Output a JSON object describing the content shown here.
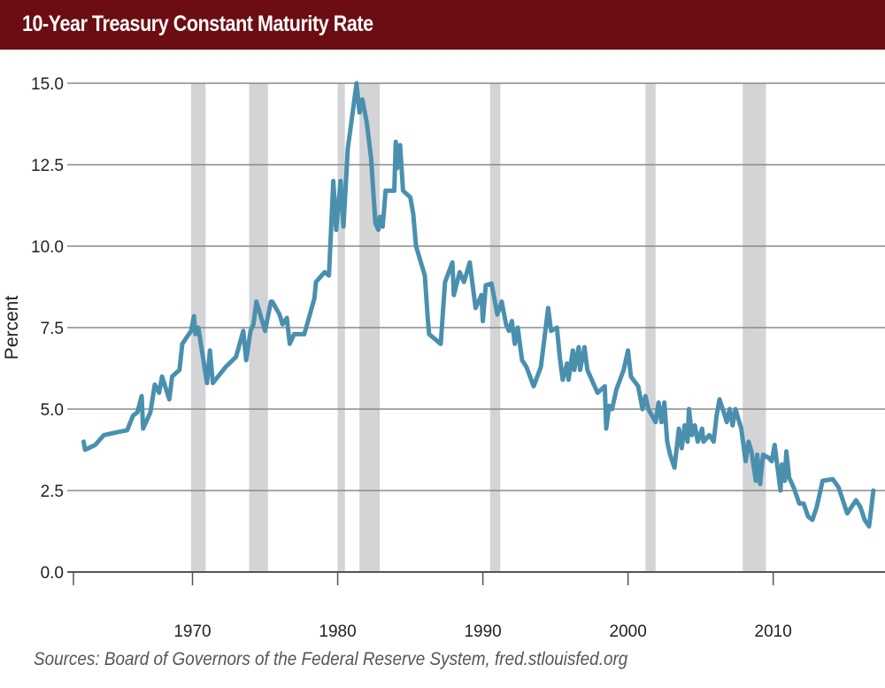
{
  "title": "10-Year Treasury Constant Maturity Rate",
  "source": "Sources: Board of Governors of the Federal Reserve System, fred.stlouisfed.org",
  "chart_data": {
    "type": "line",
    "title": "10-Year Treasury Constant Maturity Rate",
    "xlabel": "",
    "ylabel": "Percent",
    "xlim": [
      1961.8,
      2017.7
    ],
    "ylim": [
      0,
      15
    ],
    "x_ticks": [
      1970,
      1980,
      1990,
      2000,
      2010
    ],
    "x_tick_labels": [
      "1970",
      "1980",
      "1990",
      "2000",
      "2010"
    ],
    "y_ticks": [
      0,
      2.5,
      5,
      7.5,
      10,
      12.5,
      15
    ],
    "y_tick_labels": [
      "0.0",
      "2.5",
      "5.0",
      "7.5",
      "10.0",
      "12.5",
      "15.0"
    ],
    "grid": "horizontal",
    "line_color": "#4a90ae",
    "recession_color": "#d4d4d6",
    "recessions": [
      [
        1969.9,
        1970.9
      ],
      [
        1973.9,
        1975.2
      ],
      [
        1980.0,
        1980.5
      ],
      [
        1981.5,
        1982.9
      ],
      [
        1990.5,
        1991.2
      ],
      [
        2001.2,
        2001.9
      ],
      [
        2007.9,
        2009.5
      ]
    ],
    "series": [
      {
        "x": [
          1962.5,
          1962.6,
          1963.3,
          1963.9,
          1964.9,
          1965.5,
          1965.9,
          1966.2,
          1966.5,
          1966.6,
          1967.1,
          1967.4,
          1967.7,
          1967.9,
          1968.4,
          1968.6,
          1969.1,
          1969.3,
          1969.9,
          1970.1,
          1970.2,
          1970.4,
          1971.0,
          1971.2,
          1971.4,
          1972.3,
          1973.0,
          1973.5,
          1973.7,
          1974.0,
          1974.2,
          1974.4,
          1975.0,
          1975.4,
          1975.5,
          1976.0,
          1976.2,
          1976.5,
          1976.7,
          1977.0,
          1977.7,
          1978.4,
          1978.5,
          1979.1,
          1979.4,
          1979.7,
          1979.9,
          1980.2,
          1980.4,
          1980.7,
          1981.0,
          1981.3,
          1981.5,
          1981.7,
          1982.0,
          1982.3,
          1982.6,
          1982.8,
          1982.9,
          1983.1,
          1983.3,
          1983.9,
          1984.0,
          1984.1,
          1984.3,
          1984.5,
          1985.0,
          1985.2,
          1985.4,
          1986.0,
          1986.2,
          1986.3,
          1987.1,
          1987.3,
          1987.4,
          1987.9,
          1988.0,
          1988.4,
          1988.7,
          1989.1,
          1989.5,
          1989.9,
          1990.0,
          1990.2,
          1990.6,
          1991.0,
          1991.3,
          1991.6,
          1991.8,
          1992.0,
          1992.2,
          1992.4,
          1992.7,
          1993.0,
          1993.5,
          1994.0,
          1994.5,
          1994.7,
          1995.1,
          1995.3,
          1995.5,
          1995.8,
          1995.9,
          1996.2,
          1996.3,
          1996.6,
          1996.7,
          1997.0,
          1997.2,
          1997.9,
          1998.4,
          1998.5,
          1998.7,
          1998.9,
          1999.2,
          1999.7,
          2000.0,
          2000.2,
          2000.7,
          2001.0,
          2001.2,
          2001.4,
          2001.9,
          2002.1,
          2002.3,
          2002.5,
          2002.7,
          2002.9,
          2003.2,
          2003.5,
          2003.7,
          2003.9,
          2004.1,
          2004.2,
          2004.4,
          2004.6,
          2004.8,
          2005.1,
          2005.2,
          2005.6,
          2005.9,
          2006.1,
          2006.3,
          2006.6,
          2006.8,
          2007.0,
          2007.2,
          2007.4,
          2007.8,
          2008.1,
          2008.3,
          2008.5,
          2008.8,
          2008.9,
          2009.1,
          2009.3,
          2009.7,
          2009.9,
          2010.1,
          2010.3,
          2010.5,
          2010.6,
          2010.8,
          2010.9,
          2011.1,
          2011.4,
          2011.8,
          2012.1,
          2012.4,
          2012.7,
          2013.0,
          2013.4,
          2014.1,
          2014.5,
          2015.1,
          2015.7,
          2016.0,
          2016.3,
          2016.6,
          2016.9
        ],
        "y": [
          4.0,
          3.75,
          3.9,
          4.2,
          4.3,
          4.35,
          4.8,
          4.9,
          5.4,
          4.4,
          4.9,
          5.75,
          5.5,
          6.0,
          5.3,
          6.0,
          6.2,
          7.0,
          7.4,
          7.85,
          7.3,
          7.5,
          5.8,
          6.8,
          5.8,
          6.3,
          6.6,
          7.4,
          6.5,
          7.4,
          7.6,
          8.3,
          7.4,
          8.3,
          8.3,
          7.9,
          7.6,
          7.8,
          7.0,
          7.3,
          7.3,
          8.4,
          8.9,
          9.2,
          9.1,
          12.0,
          10.5,
          12.0,
          10.6,
          13.0,
          14.0,
          15.0,
          14.1,
          14.5,
          13.8,
          12.7,
          10.7,
          10.5,
          10.9,
          10.6,
          11.7,
          11.7,
          13.2,
          12.4,
          13.1,
          11.7,
          11.5,
          11.0,
          10.0,
          9.1,
          7.8,
          7.3,
          7.0,
          8.3,
          8.9,
          9.5,
          8.5,
          9.2,
          8.9,
          9.5,
          8.1,
          8.5,
          7.7,
          8.8,
          8.85,
          7.9,
          8.3,
          7.6,
          7.4,
          7.7,
          7.0,
          7.5,
          6.5,
          6.3,
          5.7,
          6.3,
          8.1,
          7.4,
          7.5,
          6.6,
          5.9,
          6.4,
          5.9,
          6.8,
          6.2,
          6.9,
          6.2,
          6.9,
          6.2,
          5.5,
          5.7,
          4.4,
          5.1,
          5.0,
          5.6,
          6.2,
          6.8,
          6.0,
          5.7,
          5.0,
          5.4,
          5.0,
          4.6,
          5.2,
          4.6,
          5.2,
          4.0,
          3.6,
          3.2,
          4.4,
          3.8,
          4.5,
          4.0,
          5.0,
          4.2,
          4.5,
          4.0,
          4.4,
          4.0,
          4.2,
          4.0,
          4.8,
          5.3,
          4.9,
          4.6,
          5.0,
          4.5,
          5.0,
          4.4,
          3.4,
          4.0,
          3.7,
          2.8,
          3.6,
          2.7,
          3.6,
          3.5,
          3.4,
          3.9,
          3.2,
          2.5,
          3.3,
          2.8,
          3.7,
          2.9,
          2.6,
          2.1,
          2.1,
          1.7,
          1.6,
          2.0,
          2.8,
          2.85,
          2.6,
          1.8,
          2.2,
          2.0,
          1.6,
          1.4,
          2.5
        ]
      }
    ]
  }
}
